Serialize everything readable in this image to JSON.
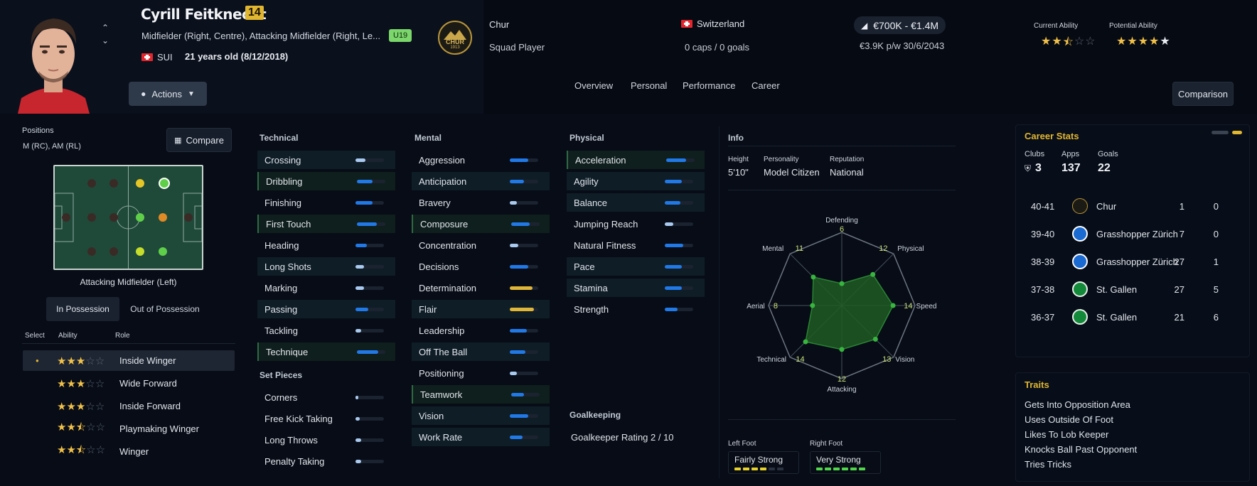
{
  "player": {
    "name": "Cyrill Feitknecht",
    "number": "14",
    "positions_full": "Midfielder (Right, Centre), Attacking Midfielder (Right, Le...",
    "nation_code": "SUI",
    "age_dob": "21 years old (8/12/2018)",
    "age_group_badge": "U19"
  },
  "club": {
    "name": "Chur",
    "squad_status": "Squad Player",
    "crest_text": "CHUR",
    "crest_year": "1913"
  },
  "nation": {
    "name": "Switzerland",
    "caps_goals": "0 caps / 0 goals"
  },
  "value": {
    "range": "€700K - €1.4M",
    "contract": "€3.9K p/w 30/6/2043"
  },
  "ability": {
    "current_label": "Current Ability",
    "potential_label": "Potential Ability",
    "current_stars": 2.5,
    "potential_stars": 4.5
  },
  "actions_label": "Actions",
  "comparison_label": "Comparison",
  "tabs": [
    "Overview",
    "Personal",
    "Performance",
    "Career"
  ],
  "positions_panel": {
    "title": "Positions",
    "codes": "M (RC), AM (RL)",
    "compare_label": "Compare",
    "selected_position": "Attacking Midfielder (Left)",
    "toggle": [
      "In Possession",
      "Out of Possession"
    ]
  },
  "roles": {
    "headers": {
      "select": "Select",
      "ability": "Ability",
      "role": "Role"
    },
    "items": [
      {
        "name": "Inside Winger",
        "stars": 3,
        "selected": true
      },
      {
        "name": "Wide Forward",
        "stars": 3,
        "selected": false
      },
      {
        "name": "Inside Forward",
        "stars": 3,
        "selected": false
      },
      {
        "name": "Playmaking Winger",
        "stars": 2.5,
        "selected": false
      },
      {
        "name": "Winger",
        "stars": 2.5,
        "selected": false
      }
    ]
  },
  "technical": {
    "title": "Technical",
    "items": [
      {
        "name": "Crossing",
        "value": 7
      },
      {
        "name": "Dribbling",
        "value": 11
      },
      {
        "name": "Finishing",
        "value": 12
      },
      {
        "name": "First Touch",
        "value": 14
      },
      {
        "name": "Heading",
        "value": 8
      },
      {
        "name": "Long Shots",
        "value": 6
      },
      {
        "name": "Marking",
        "value": 6
      },
      {
        "name": "Passing",
        "value": 9
      },
      {
        "name": "Tackling",
        "value": 4
      },
      {
        "name": "Technique",
        "value": 15
      }
    ]
  },
  "set_pieces": {
    "title": "Set Pieces",
    "items": [
      {
        "name": "Corners",
        "value": 2
      },
      {
        "name": "Free Kick Taking",
        "value": 3
      },
      {
        "name": "Long Throws",
        "value": 4
      },
      {
        "name": "Penalty Taking",
        "value": 4
      }
    ]
  },
  "mental": {
    "title": "Mental",
    "items": [
      {
        "name": "Aggression",
        "value": 13
      },
      {
        "name": "Anticipation",
        "value": 10
      },
      {
        "name": "Bravery",
        "value": 5
      },
      {
        "name": "Composure",
        "value": 13
      },
      {
        "name": "Concentration",
        "value": 6
      },
      {
        "name": "Decisions",
        "value": 13
      },
      {
        "name": "Determination",
        "value": 16
      },
      {
        "name": "Flair",
        "value": 17
      },
      {
        "name": "Leadership",
        "value": 12
      },
      {
        "name": "Off The Ball",
        "value": 11
      },
      {
        "name": "Positioning",
        "value": 5
      },
      {
        "name": "Teamwork",
        "value": 9
      },
      {
        "name": "Vision",
        "value": 13
      },
      {
        "name": "Work Rate",
        "value": 9
      }
    ]
  },
  "physical": {
    "title": "Physical",
    "items": [
      {
        "name": "Acceleration",
        "value": 14
      },
      {
        "name": "Agility",
        "value": 12
      },
      {
        "name": "Balance",
        "value": 11
      },
      {
        "name": "Jumping Reach",
        "value": 6
      },
      {
        "name": "Natural Fitness",
        "value": 13
      },
      {
        "name": "Pace",
        "value": 12
      },
      {
        "name": "Stamina",
        "value": 12
      },
      {
        "name": "Strength",
        "value": 9
      }
    ]
  },
  "goalkeeping": {
    "title": "Goalkeeping",
    "rating": "Goalkeeper Rating  2 / 10"
  },
  "info": {
    "title": "Info",
    "height_label": "Height",
    "height": "5'10\"",
    "personality_label": "Personality",
    "personality": "Model Citizen",
    "reputation_label": "Reputation",
    "reputation": "National"
  },
  "radar": {
    "axes": [
      {
        "label": "Defending",
        "value": 6
      },
      {
        "label": "Physical",
        "value": 12
      },
      {
        "label": "Speed",
        "value": 14
      },
      {
        "label": "Vision",
        "value": 13
      },
      {
        "label": "Attacking",
        "value": 12
      },
      {
        "label": "Technical",
        "value": 14
      },
      {
        "label": "Aerial",
        "value": 8
      },
      {
        "label": "Mental",
        "value": 11
      }
    ],
    "max": 20
  },
  "feet": {
    "left_label": "Left Foot",
    "left": "Fairly Strong",
    "left_level": 4,
    "right_label": "Right Foot",
    "right": "Very Strong",
    "right_level": 6
  },
  "career": {
    "title": "Career Stats",
    "clubs_label": "Clubs",
    "clubs": "3",
    "apps_label": "Apps",
    "apps": "137",
    "goals_label": "Goals",
    "goals": "22",
    "rows": [
      {
        "season": "40-41",
        "club": "Chur",
        "apps": "1",
        "goals": "0",
        "crest": "chur"
      },
      {
        "season": "39-40",
        "club": "Grasshopper Zürich",
        "apps": "7",
        "goals": "0",
        "crest": "gc"
      },
      {
        "season": "38-39",
        "club": "Grasshopper Zürich",
        "apps": "27",
        "goals": "1",
        "crest": "gc"
      },
      {
        "season": "37-38",
        "club": "St. Gallen",
        "apps": "27",
        "goals": "5",
        "crest": "sg"
      },
      {
        "season": "36-37",
        "club": "St. Gallen",
        "apps": "21",
        "goals": "6",
        "crest": "sg"
      }
    ]
  },
  "traits": {
    "title": "Traits",
    "items": [
      "Gets Into Opposition Area",
      "Uses Outside Of Foot",
      "Likes To Lob Keeper",
      "Knocks Ball Past Opponent",
      "Tries Tricks"
    ]
  },
  "colors": {
    "accent": "#e1b631",
    "bar_blue": "#2179e8",
    "bar_gold": "#e0b638",
    "radar_green": "#2f9a3a"
  }
}
